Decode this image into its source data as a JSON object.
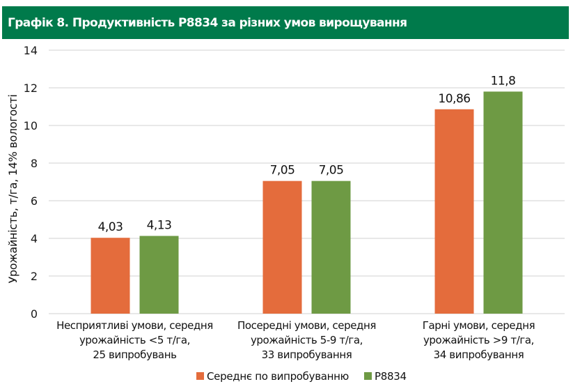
{
  "header": {
    "title": "Графік 8. Продуктивність P8834 за різних умов вирощування"
  },
  "colors": {
    "banner": "#007A4B",
    "series_average": "#E46C3C",
    "series_p8834": "#6E9A44",
    "grid": "#D9D9D9"
  },
  "chart_data": {
    "type": "bar",
    "title": "Графік 8. Продуктивність P8834 за різних умов вирощування",
    "xlabel": "",
    "ylabel": "Урожайність, т/га, 14% вологості",
    "ylim": [
      0,
      14
    ],
    "yticks": [
      0,
      2,
      4,
      6,
      8,
      10,
      12,
      14
    ],
    "grid": true,
    "legend_position": "bottom-center",
    "categories": [
      [
        "Несприятливі умови, середня",
        "урожайність <5 т/га,",
        "25 випробувань"
      ],
      [
        "Посередні умови, середня",
        "урожайність 5-9 т/га,",
        "33 випробування"
      ],
      [
        "Гарні умови, середня",
        "урожайність >9 т/га,",
        "34 випробування"
      ]
    ],
    "series": [
      {
        "name": "Середнє по випробуванню",
        "color": "#E46C3C",
        "values": [
          4.03,
          7.05,
          10.86
        ],
        "labels": [
          "4,03",
          "7,05",
          "10,86"
        ]
      },
      {
        "name": "P8834",
        "color": "#6E9A44",
        "values": [
          4.13,
          7.05,
          11.8
        ],
        "labels": [
          "4,13",
          "7,05",
          "11,8"
        ]
      }
    ]
  }
}
